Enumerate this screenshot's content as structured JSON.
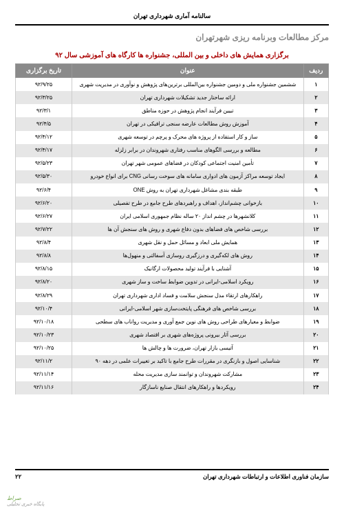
{
  "header": {
    "top": "سالنامه آماری شهرداری تهران"
  },
  "center_title": "مرکز مطالعات وبرنامه ریزی شهرتهران",
  "table_title": "برگزاری همایش های داخلی و بین المللی، جشنواره ها کارگاه های آموزشی سال ۹۲",
  "columns": {
    "idx": "ردیف",
    "title": "عنوان",
    "date": "تاریخ برگزاری"
  },
  "rows": [
    {
      "idx": "۱",
      "title": "ششمین جشنواره ملی و دومین جشنواره بین‌المللی برترین‌های پژوهش و نوآوری در مدیریت شهری",
      "date": "۹۲/۹/۲۵"
    },
    {
      "idx": "۲",
      "title": "ارائه ساختار جدید تشکیلات شهرداری تهران",
      "date": "۹۲/۳/۲۵"
    },
    {
      "idx": "۳",
      "title": "تبیین فرآیند انجام پژوهش در حوزه مناطق",
      "date": "۹۲/۳/۱"
    },
    {
      "idx": "۴",
      "title": "آموزش روش مطالعات عارضه سنجی ترافیکی در تهران",
      "date": "۹۲/۴/۵"
    },
    {
      "idx": "۵",
      "title": "ساز و کار استفاده از پروژه های محرک و پرچم در توسعه شهری",
      "date": "۹۲/۴/۱۲"
    },
    {
      "idx": "۶",
      "title": "مطالعه و بررسی الگوهای مناسب رفتاری شهروندان در برابر زلزله",
      "date": "۹۲/۴/۱۷"
    },
    {
      "idx": "۷",
      "title": "تأمین امنیت اجتماعی کودکان در فضاهای عمومی شهر تهران",
      "date": "۹۲/۵/۲۳"
    },
    {
      "idx": "۸",
      "title": "ایجاد توسعه مراکز آزمون های ادواری سامانه های سوخت رسانی CNG برای انواع خودرو",
      "date": "۹۲/۵/۳۰"
    },
    {
      "idx": "۹",
      "title": "طبقه بندی مشاغل شهرداری تهران به روش ONE",
      "date": "۹۲/۶/۴"
    },
    {
      "idx": "۱۰",
      "title": "بازخوانی چشم‌انداز، اهداف و راهبردهای طرح جامع در طرح تفصیلی",
      "date": "۹۲/۶/۲۰"
    },
    {
      "idx": "۱۱",
      "title": "کلانشهرها در چشم انداز ۲۰ ساله نظام جمهوری اسلامی ایران",
      "date": "۹۲/۶/۲۷"
    },
    {
      "idx": "۱۲",
      "title": "بررسی شاخص های فضاهای بدون دفاع شهری و روش های سنجش آن ها",
      "date": "۹۲/۷/۲۲"
    },
    {
      "idx": "۱۳",
      "title": "همایش ملی ابعاد و مسائل حمل و نقل شهری",
      "date": "۹۲/۸/۴"
    },
    {
      "idx": "۱۴",
      "title": "روش های لکه‌گیری و درزگیری روسازی آسفالتی و منهول‌ها",
      "date": "۹۲/۸/۸"
    },
    {
      "idx": "۱۵",
      "title": "آشنایی با فرآیند تولید محصولات ارگانیک",
      "date": "۹۲/۸/۱۵"
    },
    {
      "idx": "۱۶",
      "title": "رویکرد اسلامی-ایرانی در تدوین ضوابط ساخت و ساز شهری",
      "date": "۹۲/۸/۲۰"
    },
    {
      "idx": "۱۷",
      "title": "راهکارهای ارتقاء مدل سنجش سلامت و فساد اداری شهرداری تهران",
      "date": "۹۲/۸/۲۹"
    },
    {
      "idx": "۱۸",
      "title": "بررسی شاخص های فرهنگی پایتخت‌سازی شهر اسلامی-ایرانی",
      "date": "۹۲/۱۰/۴"
    },
    {
      "idx": "۱۹",
      "title": "ضوابط و معیارهای طراحی روش های نوین جمع آوری و مدیریت رواناب های سطحی",
      "date": "۹۲/۱۰/۱۸"
    },
    {
      "idx": "۲۰",
      "title": "بررسی آثار بیرونی پروژه‌های شهری بر اقتصاد شهری",
      "date": "۹۲/۱۰/۲۳"
    },
    {
      "idx": "۲۱",
      "title": "آتیسی بازار تهران، ضرورت ها و چالش ها",
      "date": "۹۲/۱۰/۲۵"
    },
    {
      "idx": "۲۲",
      "title": "شناسایی اصول و بازنگری در مقررات طرح جامع با تاکید بر تغییرات علمی در دهه ۹۰",
      "date": "۹۲/۱۱/۲"
    },
    {
      "idx": "۲۳",
      "title": "مشارکت شهروندان و توانمند سازی مدیریت محله",
      "date": "۹۲/۱۱/۱۴"
    },
    {
      "idx": "۲۴",
      "title": "رویکردها و راهکارهای انتقال صنایع ناسازگار",
      "date": "۹۲/۱۱/۱۶"
    }
  ],
  "footer": {
    "page": "۲۲",
    "org": "سازمان فناوری اطلاعات و ارتباطات شهرداری تهران"
  },
  "watermark": {
    "main": "صراط",
    "sub": "پایگاه خبری تحلیلی"
  }
}
